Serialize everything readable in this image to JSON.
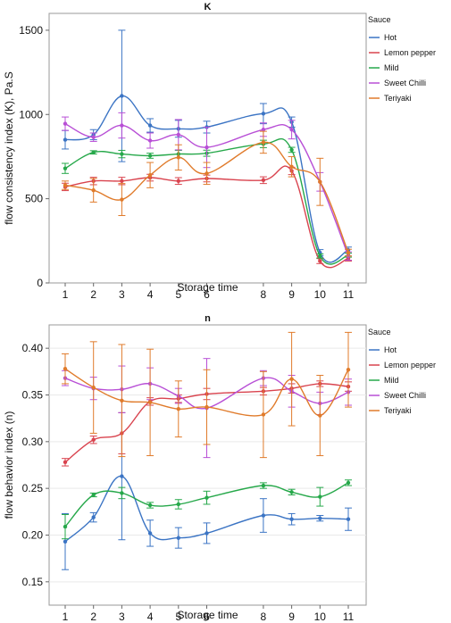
{
  "chart_data": [
    {
      "type": "line",
      "title": "K",
      "xlabel": "Storage time",
      "ylabel": "flow consistency index (K), Pa.S",
      "x": [
        1,
        2,
        3,
        4,
        5,
        6,
        8,
        9,
        10,
        11
      ],
      "ylim": [
        0,
        1600
      ],
      "yticks": [
        0,
        500,
        1000,
        1500
      ],
      "legend_title": "Sauce",
      "legend_position": "right",
      "grid": false,
      "series": [
        {
          "name": "Hot",
          "color": "#3b74c4",
          "values": [
            850,
            880,
            1110,
            935,
            915,
            925,
            1005,
            955,
            180,
            195
          ],
          "errors": [
            55,
            30,
            390,
            40,
            50,
            35,
            60,
            30,
            18,
            18
          ]
        },
        {
          "name": "Lemon pepper",
          "color": "#d9434e",
          "values": [
            570,
            605,
            605,
            625,
            605,
            620,
            610,
            665,
            130,
            145
          ],
          "errors": [
            22,
            22,
            22,
            20,
            20,
            20,
            20,
            22,
            15,
            15
          ]
        },
        {
          "name": "Mild",
          "color": "#26a84a",
          "values": [
            680,
            775,
            765,
            755,
            765,
            770,
            825,
            790,
            160,
            165
          ],
          "errors": [
            30,
            10,
            22,
            15,
            22,
            18,
            22,
            15,
            12,
            12
          ]
        },
        {
          "name": "Sweet Chilli",
          "color": "#b84fd6",
          "values": [
            945,
            865,
            935,
            845,
            880,
            805,
            910,
            910,
            600,
            160
          ],
          "errors": [
            40,
            25,
            75,
            45,
            90,
            120,
            40,
            55,
            55,
            25
          ]
        },
        {
          "name": "Teriyaki",
          "color": "#e07b2b",
          "values": [
            580,
            550,
            495,
            640,
            745,
            650,
            835,
            690,
            600,
            180
          ],
          "errors": [
            25,
            70,
            95,
            75,
            75,
            65,
            65,
            60,
            140,
            20
          ]
        }
      ]
    },
    {
      "type": "line",
      "title": "n",
      "xlabel": "Storage time",
      "ylabel": "flow behavior index (n)",
      "x": [
        1,
        2,
        3,
        4,
        5,
        6,
        8,
        9,
        10,
        11
      ],
      "ylim": [
        0.125,
        0.425
      ],
      "yticks": [
        0.15,
        0.2,
        0.25,
        0.3,
        0.35,
        0.4
      ],
      "legend_title": "Sauce",
      "legend_position": "right",
      "grid": true,
      "series": [
        {
          "name": "Hot",
          "color": "#3b74c4",
          "values": [
            0.193,
            0.219,
            0.263,
            0.202,
            0.197,
            0.202,
            0.221,
            0.217,
            0.218,
            0.217
          ],
          "errors": [
            0.03,
            0.005,
            0.068,
            0.014,
            0.011,
            0.011,
            0.018,
            0.006,
            0.003,
            0.012
          ]
        },
        {
          "name": "Lemon pepper",
          "color": "#d9434e",
          "values": [
            0.278,
            0.302,
            0.309,
            0.343,
            0.346,
            0.351,
            0.354,
            0.357,
            0.362,
            0.359
          ],
          "errors": [
            0.004,
            0.004,
            0.022,
            0.004,
            0.004,
            0.006,
            0.004,
            0.005,
            0.003,
            0.005
          ]
        },
        {
          "name": "Mild",
          "color": "#26a84a",
          "values": [
            0.209,
            0.243,
            0.245,
            0.232,
            0.233,
            0.24,
            0.253,
            0.246,
            0.241,
            0.256
          ],
          "errors": [
            0.013,
            0.002,
            0.006,
            0.003,
            0.005,
            0.007,
            0.003,
            0.003,
            0.01,
            0.003
          ]
        },
        {
          "name": "Sweet Chilli",
          "color": "#b84fd6",
          "values": [
            0.368,
            0.357,
            0.356,
            0.362,
            0.349,
            0.336,
            0.368,
            0.354,
            0.341,
            0.353
          ],
          "errors": [
            0.008,
            0.012,
            0.025,
            0.017,
            0.008,
            0.053,
            0.008,
            0.017,
            0.012,
            0.014
          ]
        },
        {
          "name": "Teriyaki",
          "color": "#e07b2b",
          "values": [
            0.378,
            0.358,
            0.344,
            0.342,
            0.335,
            0.337,
            0.329,
            0.367,
            0.328,
            0.377
          ],
          "errors": [
            0.016,
            0.049,
            0.06,
            0.057,
            0.03,
            0.04,
            0.046,
            0.05,
            0.043,
            0.04
          ]
        }
      ]
    }
  ]
}
